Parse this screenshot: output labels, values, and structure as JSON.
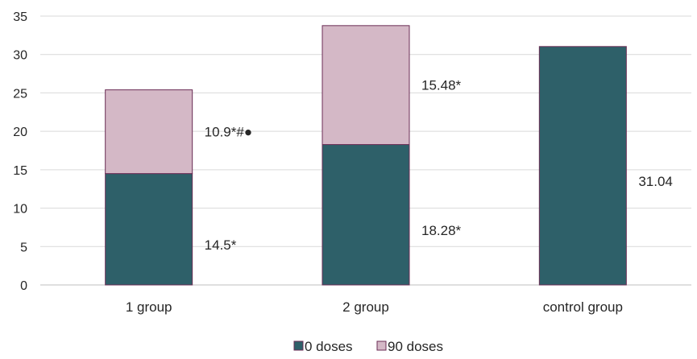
{
  "chart_data": {
    "type": "bar",
    "stacked": true,
    "categories": [
      "1 group",
      "2 group",
      "control group"
    ],
    "series": [
      {
        "name": "0 doses",
        "values": [
          14.5,
          18.28,
          31.04
        ],
        "color": "#2e6069",
        "labels": [
          "14.5*",
          "18.28*",
          "31.04"
        ]
      },
      {
        "name": "90 doses",
        "values": [
          10.9,
          15.48,
          0
        ],
        "color": "#d4b8c6",
        "labels": [
          "10.9*#●",
          "15.48*",
          ""
        ]
      }
    ],
    "ylim": [
      0,
      35
    ],
    "yticks": [
      0,
      5,
      10,
      15,
      20,
      25,
      30,
      35
    ],
    "grid": true,
    "legend": "bottom",
    "border_color": "#6b2d55"
  }
}
